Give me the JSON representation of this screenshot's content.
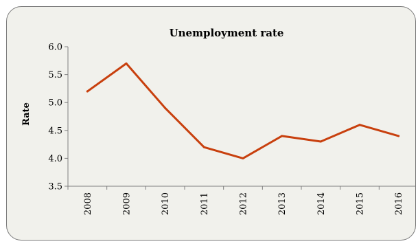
{
  "chart_data": {
    "type": "line",
    "title": "Unemployment rate",
    "xlabel": "",
    "ylabel": "Rate",
    "categories": [
      "2008",
      "2009",
      "2010",
      "2011",
      "2012",
      "2013",
      "2014",
      "2015",
      "2016"
    ],
    "series": [
      {
        "values": [
          5.2,
          5.7,
          4.9,
          4.2,
          4.0,
          4.4,
          4.3,
          4.6,
          4.4
        ],
        "color": "#c8400e"
      }
    ],
    "ylim": [
      3.5,
      6.0
    ],
    "yticks": [
      "3.5",
      "4.0",
      "4.5",
      "5.0",
      "5.5",
      "6.0"
    ],
    "grid": false,
    "legend": "none"
  }
}
